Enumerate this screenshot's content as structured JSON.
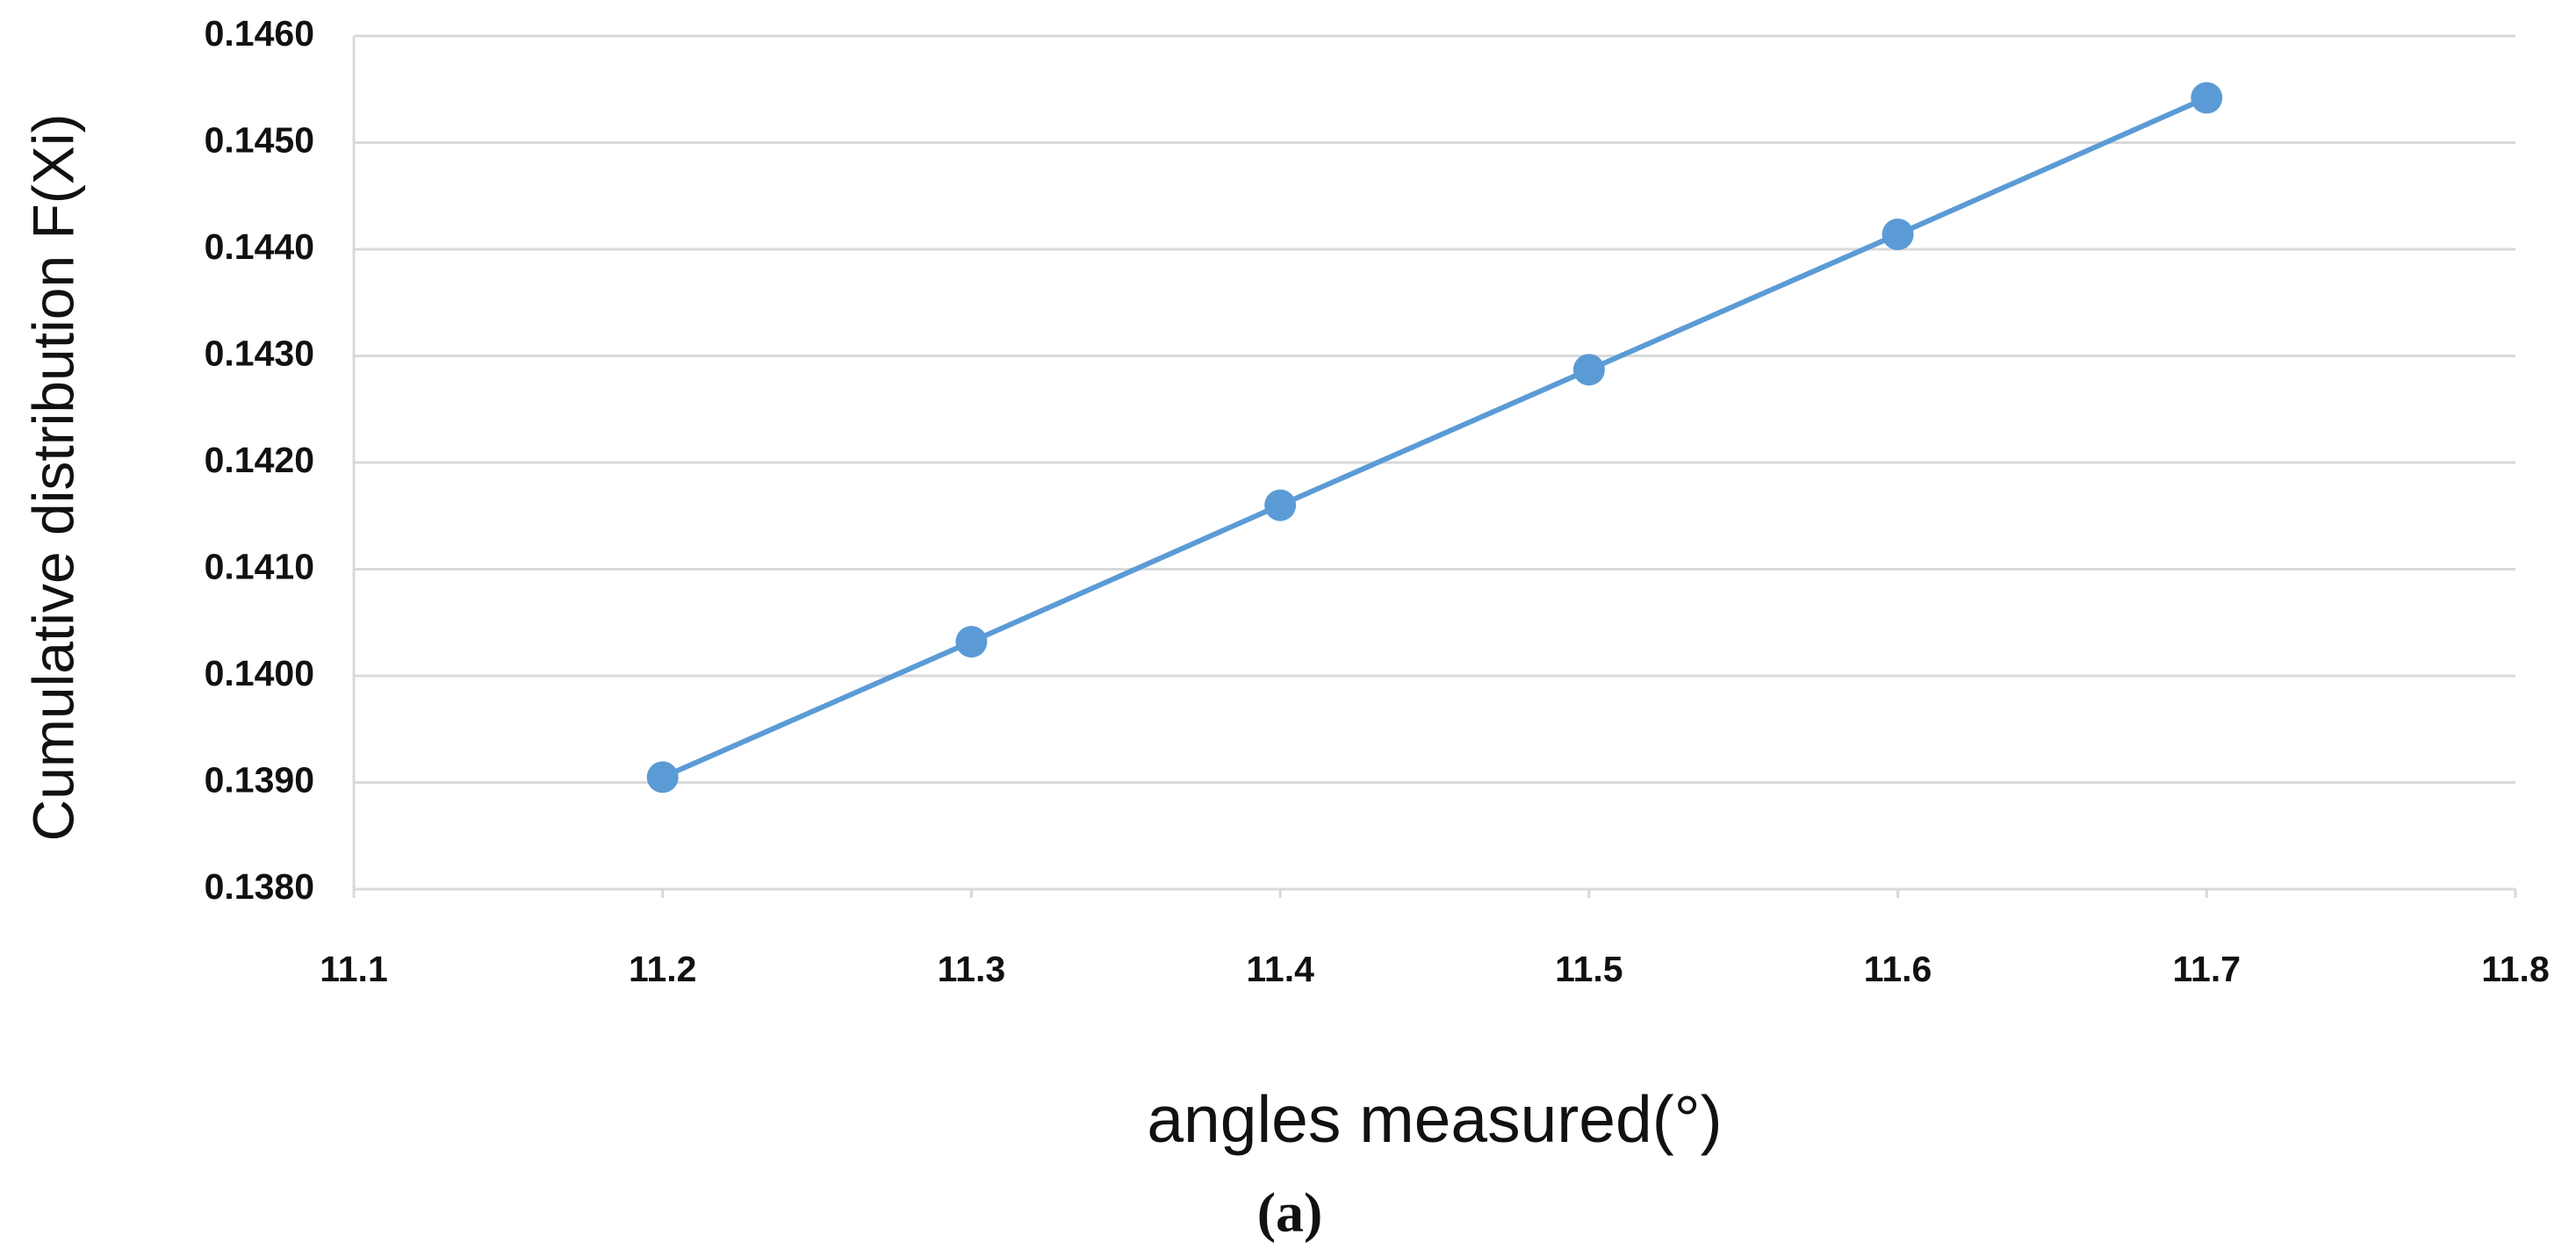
{
  "chart_data": {
    "type": "line",
    "xlabel": "angles measured(°)",
    "ylabel": "Cumulative distribution F(Xi)",
    "caption": "(a)",
    "x": [
      11.2,
      11.3,
      11.4,
      11.5,
      11.6,
      11.7
    ],
    "series": [
      {
        "color": "#5b9bd5",
        "values": [
          0.13905,
          0.14032,
          0.1416,
          0.14287,
          0.14414,
          0.14542
        ]
      }
    ],
    "xlim": [
      11.1,
      11.8
    ],
    "xticks": [
      11.1,
      11.2,
      11.3,
      11.4,
      11.5,
      11.6,
      11.7,
      11.8
    ],
    "ylim": [
      0.138,
      0.146
    ],
    "yticks": [
      {
        "value": 0.138,
        "label": "0.1380"
      },
      {
        "value": 0.139,
        "label": "0.1390"
      },
      {
        "value": 0.14,
        "label": "0.1400"
      },
      {
        "value": 0.141,
        "label": "0.1410"
      },
      {
        "value": 0.142,
        "label": "0.1420"
      },
      {
        "value": 0.143,
        "label": "0.1430"
      },
      {
        "value": 0.144,
        "label": "0.1440"
      },
      {
        "value": 0.145,
        "label": "0.1450"
      },
      {
        "value": 0.146,
        "label": "0.1460"
      }
    ],
    "grid": true
  }
}
